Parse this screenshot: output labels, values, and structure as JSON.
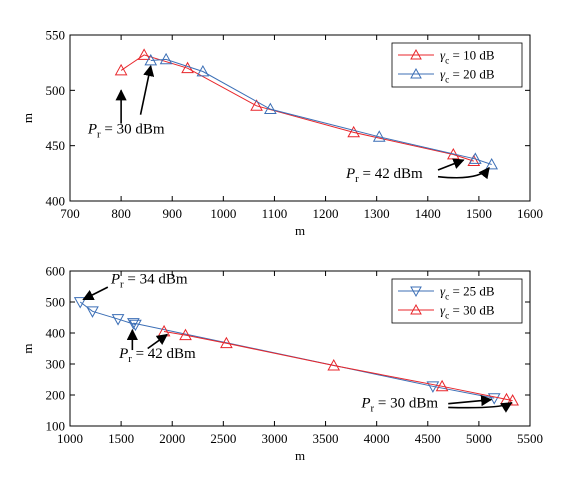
{
  "chart_data": [
    {
      "type": "line",
      "xlabel": "m",
      "ylabel": "m",
      "xlim": [
        700,
        1600
      ],
      "ylim": [
        400,
        550
      ],
      "xticks": [
        700,
        800,
        900,
        1000,
        1100,
        1200,
        1300,
        1400,
        1500,
        1600
      ],
      "yticks": [
        400,
        450,
        500,
        550
      ],
      "grid": false,
      "legend_position": "top-right",
      "series": [
        {
          "name_prefix": "γ",
          "name_sub": "c",
          "name_value": " =  10 dB",
          "color": "#e8262b",
          "marker": "triangle-up",
          "points": [
            [
              800,
              518
            ],
            [
              845,
              532
            ],
            [
              930,
              520
            ],
            [
              1065,
              486
            ],
            [
              1255,
              462
            ],
            [
              1450,
              442
            ],
            [
              1490,
              436
            ]
          ]
        },
        {
          "name_prefix": "γ",
          "name_sub": "c",
          "name_value": " =  20 dB",
          "color": "#3c6fb6",
          "marker": "triangle-up",
          "points": [
            [
              858,
              527
            ],
            [
              888,
              528
            ],
            [
              960,
              517
            ],
            [
              1092,
              483
            ],
            [
              1305,
              458
            ],
            [
              1493,
              438
            ],
            [
              1525,
              433
            ]
          ]
        }
      ],
      "annotations": [
        {
          "label": "P",
          "sub": "r",
          "value": " = 30 dBm",
          "text_at": [
            735,
            461
          ],
          "arrows": [
            {
              "from": [
                800,
                470
              ],
              "to": [
                800,
                500
              ]
            },
            {
              "from": [
                838,
                478
              ],
              "to": [
                858,
                522
              ]
            }
          ]
        },
        {
          "label": "P",
          "sub": "r",
          "value": " = 42 dBm",
          "text_at": [
            1240,
            421
          ],
          "arrows": [
            {
              "from": [
                1420,
                428
              ],
              "to": [
                1470,
                437
              ]
            },
            {
              "from": [
                1420,
                422
              ],
              "to": [
                1500,
                418
              ],
              "curve_to": [
                1520,
                430
              ]
            }
          ]
        }
      ]
    },
    {
      "type": "line",
      "xlabel": "m",
      "ylabel": "m",
      "xlim": [
        1000,
        5500
      ],
      "ylim": [
        100,
        600
      ],
      "xticks": [
        1000,
        1500,
        2000,
        2500,
        3000,
        3500,
        4000,
        4500,
        5000,
        5500
      ],
      "yticks": [
        100,
        200,
        300,
        400,
        500,
        600
      ],
      "grid": false,
      "legend_position": "top-right",
      "series": [
        {
          "name_prefix": "γ",
          "name_sub": "c",
          "name_value": " =  25 dB",
          "color": "#3c6fb6",
          "marker": "triangle-down",
          "points": [
            [
              1100,
              500
            ],
            [
              1220,
              470
            ],
            [
              1470,
              445
            ],
            [
              1640,
              427
            ],
            [
              1620,
              432
            ],
            [
              4550,
              228
            ],
            [
              5150,
              190
            ]
          ]
        },
        {
          "name_prefix": "γ",
          "name_sub": "c",
          "name_value": " =  30 dB",
          "color": "#e8262b",
          "marker": "triangle-up",
          "points": [
            [
              1920,
              405
            ],
            [
              2130,
              393
            ],
            [
              2530,
              367
            ],
            [
              3580,
              295
            ],
            [
              4640,
              228
            ],
            [
              5270,
              186
            ],
            [
              5330,
              182
            ]
          ]
        }
      ],
      "annotations": [
        {
          "label": "P",
          "sub": "r",
          "value": " = 34 dBm",
          "text_at": [
            1400,
            560
          ],
          "arrows": [
            {
              "from": [
                1370,
                548
              ],
              "to": [
                1130,
                508
              ]
            }
          ]
        },
        {
          "label": "P",
          "sub": "r",
          "value": " = 42 dBm",
          "text_at": [
            1480,
            320
          ],
          "arrows": [
            {
              "from": [
                1610,
                345
              ],
              "to": [
                1610,
                410
              ]
            },
            {
              "from": [
                1760,
                350
              ],
              "to": [
                1950,
                395
              ]
            }
          ]
        },
        {
          "label": "P",
          "sub": "r",
          "value": " = 30 dBm",
          "text_at": [
            3850,
            160
          ],
          "arrows": [
            {
              "from": [
                4700,
                172
              ],
              "to": [
                5120,
                185
              ]
            },
            {
              "from": [
                4700,
                160
              ],
              "to": [
                5220,
                155
              ],
              "curve_to": [
                5320,
                175
              ]
            }
          ]
        }
      ]
    }
  ]
}
